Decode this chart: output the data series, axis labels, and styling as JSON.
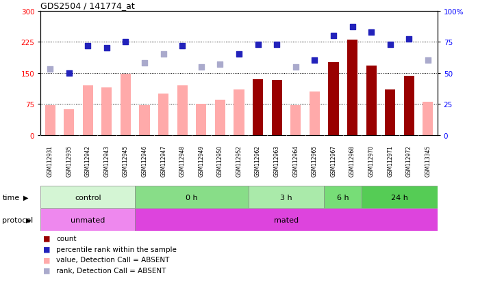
{
  "title": "GDS2504 / 141774_at",
  "samples": [
    "GSM112931",
    "GSM112935",
    "GSM112942",
    "GSM112943",
    "GSM112945",
    "GSM112946",
    "GSM112947",
    "GSM112948",
    "GSM112949",
    "GSM112950",
    "GSM112952",
    "GSM112962",
    "GSM112963",
    "GSM112964",
    "GSM112965",
    "GSM112967",
    "GSM112968",
    "GSM112970",
    "GSM112971",
    "GSM112972",
    "GSM113345"
  ],
  "bar_values": [
    72,
    62,
    120,
    115,
    148,
    72,
    100,
    120,
    75,
    85,
    110,
    135,
    133,
    72,
    105,
    175,
    230,
    168,
    110,
    143,
    80
  ],
  "bar_absent": [
    true,
    true,
    true,
    true,
    true,
    true,
    true,
    true,
    true,
    true,
    true,
    false,
    false,
    true,
    true,
    false,
    false,
    false,
    false,
    false,
    true
  ],
  "rank_values": [
    53,
    50,
    72,
    70,
    75,
    58,
    65,
    72,
    55,
    57,
    65,
    73,
    73,
    55,
    60,
    80,
    87,
    83,
    73,
    77,
    60
  ],
  "rank_absent": [
    true,
    false,
    false,
    false,
    false,
    true,
    true,
    false,
    true,
    true,
    false,
    false,
    false,
    true,
    false,
    false,
    false,
    false,
    false,
    false,
    true
  ],
  "ylim_left": [
    0,
    300
  ],
  "ylim_right": [
    0,
    100
  ],
  "yticks_left": [
    0,
    75,
    150,
    225,
    300
  ],
  "yticks_right": [
    0,
    25,
    50,
    75,
    100
  ],
  "hlines": [
    75,
    150,
    225
  ],
  "time_groups": [
    {
      "label": "control",
      "start": 0,
      "end": 5,
      "color": "#d4f5d4"
    },
    {
      "label": "0 h",
      "start": 5,
      "end": 11,
      "color": "#88dd88"
    },
    {
      "label": "3 h",
      "start": 11,
      "end": 15,
      "color": "#aaeaaa"
    },
    {
      "label": "6 h",
      "start": 15,
      "end": 17,
      "color": "#77dd77"
    },
    {
      "label": "24 h",
      "start": 17,
      "end": 21,
      "color": "#55cc55"
    }
  ],
  "protocol_groups": [
    {
      "label": "unmated",
      "start": 0,
      "end": 5,
      "color": "#ee88ee"
    },
    {
      "label": "mated",
      "start": 5,
      "end": 21,
      "color": "#dd44dd"
    }
  ],
  "bar_color_present": "#990000",
  "bar_color_absent": "#ffaaaa",
  "rank_color_present": "#2222bb",
  "rank_color_absent": "#aaaacc",
  "bg_color": "#ffffff",
  "plot_bg": "#ffffff",
  "bar_width": 0.55,
  "rank_marker_size": 40
}
